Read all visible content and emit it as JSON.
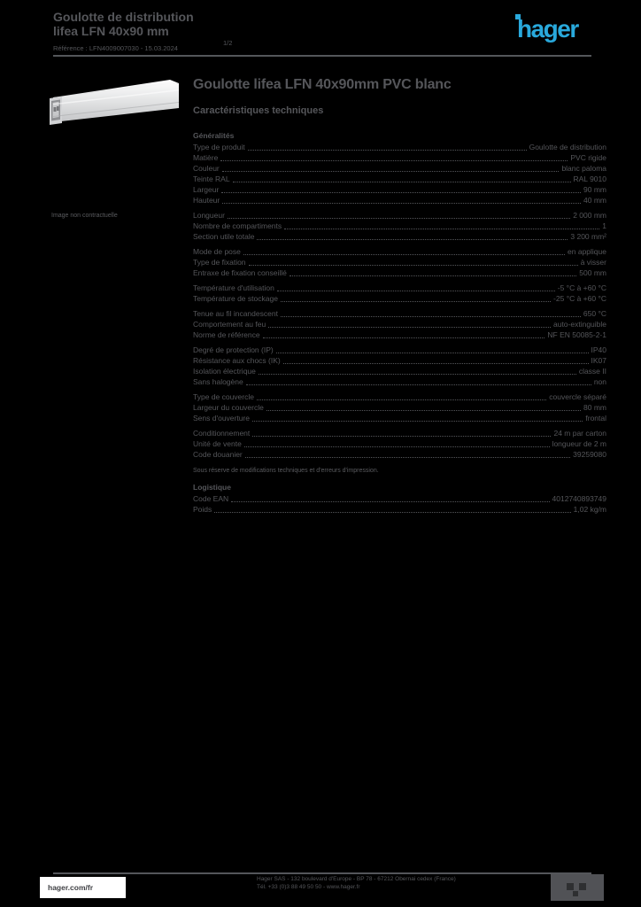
{
  "page": {
    "background": "#000000",
    "text_color": "#55565a",
    "accent_blue": "#29a9dc"
  },
  "header": {
    "title_line1": "Goulotte de distribution",
    "title_line2": "lifea LFN 40x90 mm",
    "subline": "Référence : LFN4009007030 - 15.03.2024",
    "page_indicator": "1/2",
    "logo_text": "hager"
  },
  "product": {
    "image_caption": "Image non contractuelle",
    "title": "Goulotte lifea LFN 40x90mm PVC blanc",
    "section_subtitle": "Caractéristiques techniques"
  },
  "spec_table": {
    "sections": [
      {
        "header": "Généralités",
        "rows": [
          {
            "label": "Type de produit",
            "value": "Goulotte de distribution"
          },
          {
            "label": "Matière",
            "value": "PVC rigide"
          },
          {
            "label": "Couleur",
            "value": "blanc paloma"
          },
          {
            "label": "Teinte RAL",
            "value": "RAL 9010"
          },
          {
            "label": "Largeur",
            "value": "90 mm"
          },
          {
            "label": "Hauteur",
            "value": "40 mm"
          }
        ]
      },
      {
        "rows": [
          {
            "label": "Longueur",
            "value": "2 000 mm"
          },
          {
            "label": "Nombre de compartiments",
            "value": "1"
          },
          {
            "label": "Section utile totale",
            "value": "3 200 mm²"
          }
        ]
      },
      {
        "rows": [
          {
            "label": "Mode de pose",
            "value": "en applique"
          },
          {
            "label": "Type de fixation",
            "value": "à visser"
          },
          {
            "label": "Entraxe de fixation conseillé",
            "value": "500 mm"
          }
        ]
      },
      {
        "rows": [
          {
            "label": "Température d'utilisation",
            "value": "-5 °C à +60 °C"
          },
          {
            "label": "Température de stockage",
            "value": "-25 °C à +60 °C"
          }
        ]
      },
      {
        "rows": [
          {
            "label": "Tenue au fil incandescent",
            "value": "650 °C"
          },
          {
            "label": "Comportement au feu",
            "value": "auto-extinguible"
          },
          {
            "label": "Norme de référence",
            "value": "NF EN 50085-2-1"
          }
        ]
      },
      {
        "rows": [
          {
            "label": "Degré de protection (IP)",
            "value": "IP40"
          },
          {
            "label": "Résistance aux chocs (IK)",
            "value": "IK07"
          },
          {
            "label": "Isolation électrique",
            "value": "classe II"
          },
          {
            "label": "Sans halogène",
            "value": "non"
          }
        ]
      },
      {
        "rows": [
          {
            "label": "Type de couvercle",
            "value": "couvercle séparé"
          },
          {
            "label": "Largeur du couvercle",
            "value": "80 mm"
          },
          {
            "label": "Sens d'ouverture",
            "value": "frontal"
          }
        ]
      },
      {
        "rows": [
          {
            "label": "Conditionnement",
            "value": "24 m par carton"
          },
          {
            "label": "Unité de vente",
            "value": "longueur de 2 m"
          },
          {
            "label": "Code douanier",
            "value": "39259080"
          }
        ]
      }
    ],
    "footnote": "Sous réserve de modifications techniques et d'erreurs d'impression.",
    "logistics_header": "Logistique",
    "logistics_rows": [
      {
        "label": "Code EAN",
        "value": "4012740893749"
      },
      {
        "label": "Poids",
        "value": "1,02 kg/m"
      }
    ]
  },
  "footer": {
    "website": "hager.com/fr",
    "address_line1": "Hager SAS - 132 boulevard d'Europe - BP 78 - 67212 Obernai cedex (France)",
    "address_line2": "Tél. +33 (0)3 88 49 50 50 - www.hager.fr"
  }
}
